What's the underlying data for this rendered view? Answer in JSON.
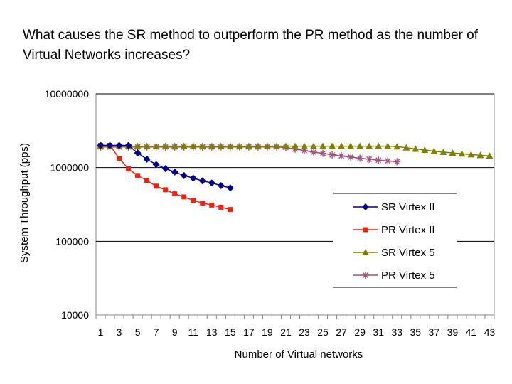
{
  "question": "What causes the SR method to outperform the PR method as the number of Virtual Networks increases?",
  "chart_data": {
    "type": "line",
    "title": "",
    "xlabel": "Number of Virtual networks",
    "ylabel": "System Throughput (pps)",
    "y_scale": "log",
    "ylim": [
      10000,
      10000000
    ],
    "y_ticks": [
      10000,
      100000,
      1000000,
      10000000
    ],
    "y_tick_labels": [
      "10000",
      "100000",
      "1000000",
      "10000000"
    ],
    "xlim": [
      1,
      43
    ],
    "x_ticks": [
      1,
      3,
      5,
      7,
      9,
      11,
      13,
      15,
      17,
      19,
      21,
      23,
      25,
      27,
      29,
      31,
      33,
      35,
      37,
      39,
      41,
      43
    ],
    "grid": "horizontal major lines",
    "legend_position": "center-right",
    "series": [
      {
        "name": "SR Virtex II",
        "color": "#00008b",
        "marker": "diamond",
        "x": [
          1,
          2,
          3,
          4,
          5,
          6,
          7,
          8,
          9,
          10,
          11,
          12,
          13,
          14,
          15
        ],
        "values": [
          2000000,
          2000000,
          2000000,
          2000000,
          1580000,
          1300000,
          1100000,
          970000,
          870000,
          780000,
          720000,
          660000,
          620000,
          570000,
          530000
        ]
      },
      {
        "name": "PR Virtex II",
        "color": "#ee2211",
        "marker": "square",
        "x": [
          1,
          2,
          3,
          4,
          5,
          6,
          7,
          8,
          9,
          10,
          11,
          12,
          13,
          14,
          15
        ],
        "values": [
          2000000,
          2000000,
          1340000,
          960000,
          780000,
          670000,
          560000,
          500000,
          440000,
          400000,
          360000,
          330000,
          310000,
          290000,
          270000
        ]
      },
      {
        "name": "SR Virtex 5",
        "color": "#808000",
        "marker": "triangle",
        "x": [
          1,
          2,
          3,
          4,
          5,
          6,
          7,
          8,
          9,
          10,
          11,
          12,
          13,
          14,
          15,
          16,
          17,
          18,
          19,
          20,
          21,
          22,
          23,
          24,
          25,
          26,
          27,
          28,
          29,
          30,
          31,
          32,
          33,
          34,
          35,
          36,
          37,
          38,
          39,
          40,
          41,
          42,
          43
        ],
        "values": [
          1950000,
          1950000,
          1950000,
          1950000,
          1950000,
          1950000,
          1950000,
          1950000,
          1950000,
          1950000,
          1950000,
          1950000,
          1950000,
          1950000,
          1950000,
          1950000,
          1950000,
          1950000,
          1950000,
          1950000,
          1950000,
          1950000,
          1950000,
          1950000,
          1950000,
          1950000,
          1950000,
          1950000,
          1950000,
          1950000,
          1950000,
          1950000,
          1920000,
          1860000,
          1790000,
          1730000,
          1670000,
          1620000,
          1580000,
          1540000,
          1500000,
          1470000,
          1440000
        ]
      },
      {
        "name": "PR Virtex 5",
        "color": "#a0507a",
        "marker": "star",
        "x": [
          1,
          2,
          3,
          4,
          5,
          6,
          7,
          8,
          9,
          10,
          11,
          12,
          13,
          14,
          15,
          16,
          17,
          18,
          19,
          20,
          21,
          22,
          23,
          24,
          25,
          26,
          27,
          28,
          29,
          30,
          31,
          32,
          33
        ],
        "values": [
          1900000,
          1900000,
          1900000,
          1900000,
          1900000,
          1900000,
          1900000,
          1900000,
          1900000,
          1900000,
          1900000,
          1900000,
          1900000,
          1900000,
          1900000,
          1900000,
          1900000,
          1900000,
          1900000,
          1900000,
          1870000,
          1780000,
          1700000,
          1620000,
          1560000,
          1490000,
          1440000,
          1390000,
          1340000,
          1300000,
          1260000,
          1230000,
          1200000
        ]
      }
    ]
  }
}
